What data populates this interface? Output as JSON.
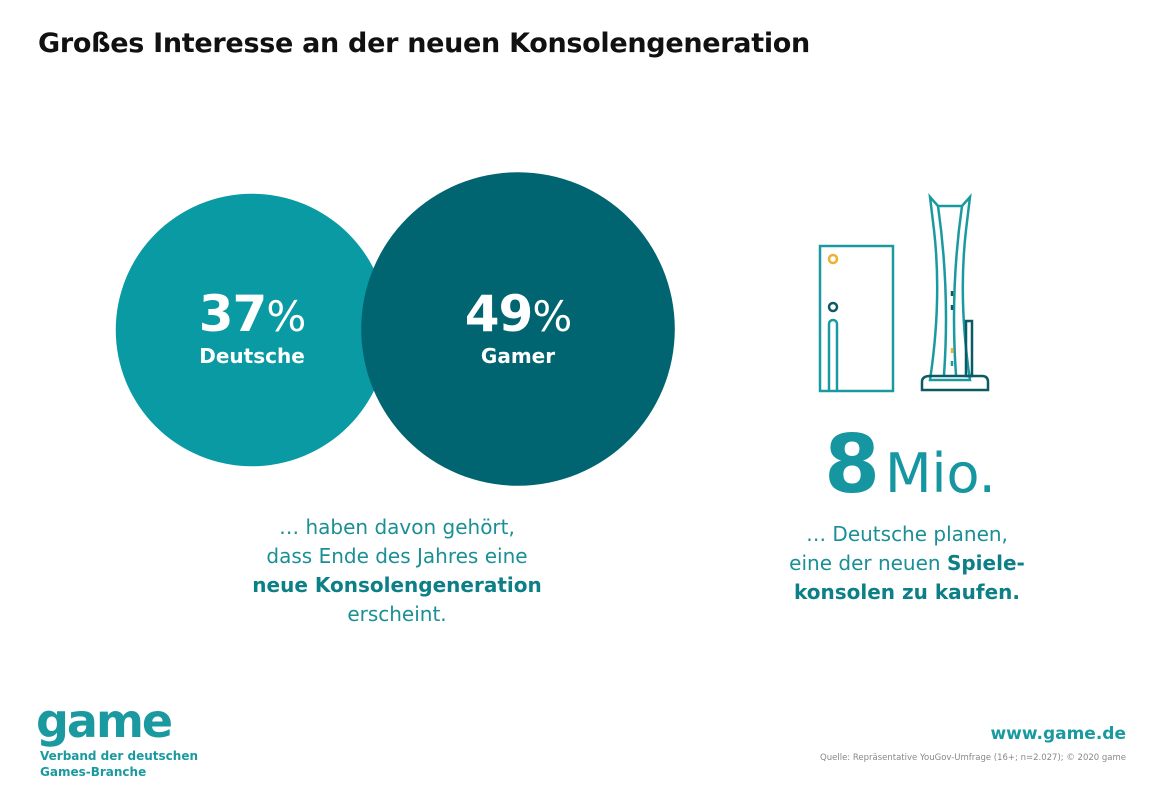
{
  "title": "Großes Interesse an der neuen Konsolengeneration",
  "chart_data": {
    "type": "bubble",
    "categories": [
      "Deutsche",
      "Gamer"
    ],
    "values": [
      37,
      49
    ],
    "unit": "%",
    "colors": [
      "#0a9aa3",
      "#006570"
    ]
  },
  "left_text": {
    "line1": "… haben davon gehört,",
    "line2": "dass Ende des Jahres eine",
    "line3_bold": "neue Konsolengeneration",
    "line4": "erscheint."
  },
  "right": {
    "number": "8",
    "unit": "Mio.",
    "line1": "… Deutsche planen,",
    "line2_pre": "eine der neuen ",
    "line2_bold": "Spiele-",
    "line3_bold": "konsolen zu kaufen.",
    "icons": [
      "xbox-series-x-icon",
      "playstation-5-icon"
    ]
  },
  "footer": {
    "logo": "game",
    "logo_sub1": "Verband der deutschen",
    "logo_sub2": "Games-Branche",
    "url": "www.game.de",
    "source": "Quelle: Repräsentative YouGov-Umfrage (16+; n=2.027); © 2020 game"
  }
}
